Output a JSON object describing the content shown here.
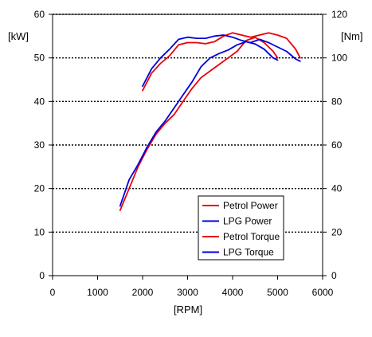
{
  "chart_data": {
    "type": "line",
    "title": "",
    "xlabel": "[RPM]",
    "ylabel_left": "[kW]",
    "ylabel_right": "[Nm]",
    "xlim": [
      0,
      6000
    ],
    "ylim_left": [
      0,
      60
    ],
    "ylim_right": [
      0,
      120
    ],
    "x_ticks": [
      0,
      1000,
      2000,
      3000,
      4000,
      5000,
      6000
    ],
    "y_ticks_left": [
      0,
      10,
      20,
      30,
      40,
      50,
      60
    ],
    "y_ticks_right": [
      0,
      20,
      40,
      60,
      80,
      100,
      120
    ],
    "grid": "horizontal dotted",
    "legend_position": "lower-right",
    "colors": {
      "petrol": "#e8000b",
      "lpg": "#0000dd"
    },
    "series": [
      {
        "name": "Petrol Power",
        "axis": "left",
        "color": "#e8000b",
        "points": [
          [
            1500,
            15
          ],
          [
            1700,
            20
          ],
          [
            1900,
            25
          ],
          [
            2100,
            29
          ],
          [
            2300,
            32.5
          ],
          [
            2500,
            35
          ],
          [
            2700,
            37
          ],
          [
            2900,
            40
          ],
          [
            3100,
            43
          ],
          [
            3300,
            45.5
          ],
          [
            3500,
            47
          ],
          [
            3700,
            48.5
          ],
          [
            3900,
            50
          ],
          [
            4100,
            51.5
          ],
          [
            4300,
            54
          ],
          [
            4500,
            54.7
          ],
          [
            4700,
            53.5
          ],
          [
            4900,
            51.5
          ],
          [
            5000,
            50
          ]
        ]
      },
      {
        "name": "LPG Power",
        "axis": "left",
        "color": "#0000dd",
        "points": [
          [
            1500,
            16
          ],
          [
            1700,
            22
          ],
          [
            1900,
            25.5
          ],
          [
            2100,
            29.5
          ],
          [
            2300,
            33
          ],
          [
            2500,
            35.5
          ],
          [
            2700,
            38.5
          ],
          [
            2900,
            41.5
          ],
          [
            3100,
            44.5
          ],
          [
            3300,
            48
          ],
          [
            3500,
            50
          ],
          [
            3700,
            51
          ],
          [
            3900,
            51.8
          ],
          [
            4100,
            53
          ],
          [
            4300,
            53.7
          ],
          [
            4500,
            53.2
          ],
          [
            4700,
            52
          ],
          [
            4900,
            50
          ],
          [
            5000,
            49.5
          ]
        ]
      },
      {
        "name": "Petrol Torque",
        "axis": "right",
        "color": "#e8000b",
        "points": [
          [
            2000,
            85
          ],
          [
            2200,
            93
          ],
          [
            2400,
            97.5
          ],
          [
            2600,
            101
          ],
          [
            2800,
            106
          ],
          [
            3000,
            107
          ],
          [
            3200,
            107
          ],
          [
            3400,
            106.5
          ],
          [
            3600,
            107.5
          ],
          [
            3800,
            110
          ],
          [
            4000,
            111.5
          ],
          [
            4200,
            110.5
          ],
          [
            4400,
            109.5
          ],
          [
            4600,
            110.5
          ],
          [
            4800,
            111.5
          ],
          [
            5000,
            110.5
          ],
          [
            5200,
            109
          ],
          [
            5400,
            104
          ],
          [
            5500,
            100
          ]
        ]
      },
      {
        "name": "LPG Torque",
        "axis": "right",
        "color": "#0000dd",
        "points": [
          [
            2000,
            87
          ],
          [
            2200,
            95
          ],
          [
            2400,
            100
          ],
          [
            2600,
            104
          ],
          [
            2800,
            108.5
          ],
          [
            3000,
            109.5
          ],
          [
            3200,
            109
          ],
          [
            3400,
            109
          ],
          [
            3600,
            110
          ],
          [
            3800,
            110.5
          ],
          [
            4000,
            109.5
          ],
          [
            4200,
            108
          ],
          [
            4400,
            107
          ],
          [
            4600,
            108.5
          ],
          [
            4800,
            107
          ],
          [
            5000,
            105
          ],
          [
            5200,
            103
          ],
          [
            5400,
            99.5
          ],
          [
            5500,
            98.5
          ]
        ]
      }
    ]
  }
}
